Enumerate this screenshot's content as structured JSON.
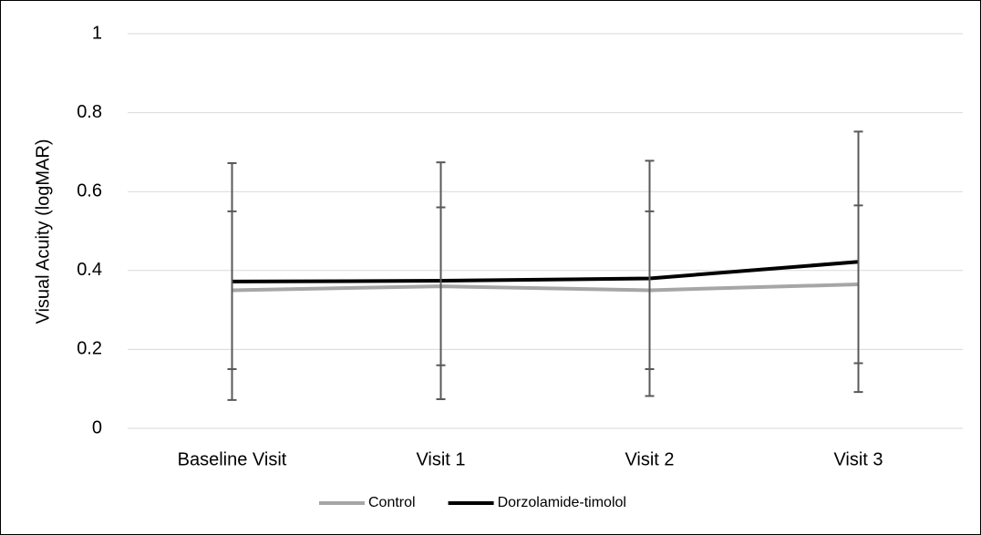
{
  "chart_data": {
    "type": "line",
    "ylabel": "Visual Acuity (logMAR)",
    "categories": [
      "Baseline Visit",
      "Visit 1",
      "Visit 2",
      "Visit 3"
    ],
    "series": [
      {
        "name": "Control",
        "color": "#a6a6a6",
        "values": [
          0.35,
          0.36,
          0.35,
          0.365
        ],
        "errors": [
          0.2,
          0.2,
          0.2,
          0.2
        ]
      },
      {
        "name": "Dorzolamide-timolol",
        "color": "#000000",
        "values": [
          0.372,
          0.374,
          0.38,
          0.422
        ],
        "errors": [
          0.3,
          0.3,
          0.298,
          0.33
        ]
      }
    ],
    "error_color": "#595959",
    "ylim": [
      0,
      1
    ],
    "yticks": [
      0,
      0.2,
      0.4,
      0.6,
      0.8,
      1
    ],
    "grid": true,
    "legend": "bottom"
  }
}
